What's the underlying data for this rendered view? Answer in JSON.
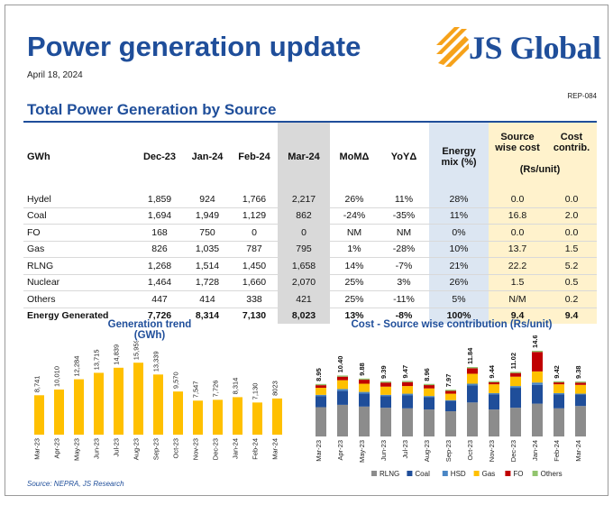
{
  "header": {
    "title": "Power generation update",
    "date": "April 18, 2024",
    "report_id": "REP-084",
    "brand": "JS Global"
  },
  "colors": {
    "brand_blue": "#1f4e9a",
    "bar_yellow": "#ffc000",
    "mar_col": "#d9d9d9",
    "mix_col": "#dce6f2",
    "cost_col": "#fff2cc"
  },
  "table": {
    "title": "Total Power Generation by Source",
    "headers": {
      "unit": "GWh",
      "dec": "Dec-23",
      "jan": "Jan-24",
      "feb": "Feb-24",
      "mar": "Mar-24",
      "mom": "MoMΔ",
      "yoy": "YoYΔ",
      "mix_l1": "Energy",
      "mix_l2": "mix (%)",
      "swc_l1": "Source",
      "swc_l2": "wise cost",
      "contrib_l1": "Cost",
      "contrib_l2": "contrib.",
      "rs_unit": "(Rs/unit)"
    },
    "rows": [
      {
        "source": "Hydel",
        "dec": "1,859",
        "jan": "924",
        "feb": "1,766",
        "mar": "2,217",
        "mom": "26%",
        "yoy": "11%",
        "mix": "28%",
        "cost": "0.0",
        "contrib": "0.0"
      },
      {
        "source": "Coal",
        "dec": "1,694",
        "jan": "1,949",
        "feb": "1,129",
        "mar": "862",
        "mom": "-24%",
        "yoy": "-35%",
        "mix": "11%",
        "cost": "16.8",
        "contrib": "2.0"
      },
      {
        "source": "FO",
        "dec": "168",
        "jan": "750",
        "feb": "0",
        "mar": "0",
        "mom": "NM",
        "yoy": "NM",
        "mix": "0%",
        "cost": "0.0",
        "contrib": "0.0"
      },
      {
        "source": "Gas",
        "dec": "826",
        "jan": "1,035",
        "feb": "787",
        "mar": "795",
        "mom": "1%",
        "yoy": "-28%",
        "mix": "10%",
        "cost": "13.7",
        "contrib": "1.5"
      },
      {
        "source": "RLNG",
        "dec": "1,268",
        "jan": "1,514",
        "feb": "1,450",
        "mar": "1,658",
        "mom": "14%",
        "yoy": "-7%",
        "mix": "21%",
        "cost": "22.2",
        "contrib": "5.2"
      },
      {
        "source": "Nuclear",
        "dec": "1,464",
        "jan": "1,728",
        "feb": "1,660",
        "mar": "2,070",
        "mom": "25%",
        "yoy": "3%",
        "mix": "26%",
        "cost": "1.5",
        "contrib": "0.5"
      },
      {
        "source": "Others",
        "dec": "447",
        "jan": "414",
        "feb": "338",
        "mar": "421",
        "mom": "25%",
        "yoy": "-11%",
        "mix": "5%",
        "cost": "N/M",
        "contrib": "0.2"
      }
    ],
    "total": {
      "source": "Energy Generated",
      "dec": "7,726",
      "jan": "8,314",
      "feb": "7,130",
      "mar": "8,023",
      "mom": "13%",
      "yoy": "-8%",
      "mix": "100%",
      "cost": "9.4",
      "contrib": "9.4"
    }
  },
  "chart_data": [
    {
      "type": "bar",
      "title_line1": "Generation trend",
      "title_line2": "(GWh)",
      "categories": [
        "Mar-23",
        "Apr-23",
        "May-23",
        "Jun-23",
        "Jul-23",
        "Aug-23",
        "Sep-23",
        "Oct-23",
        "Nov-23",
        "Dec-23",
        "Jan-24",
        "Feb-24",
        "Mar-24"
      ],
      "values": [
        8741,
        10010,
        12284,
        13715,
        14839,
        15959,
        13339,
        9570,
        7547,
        7726,
        8314,
        7130,
        8023
      ],
      "labels": [
        "8,741",
        "10,010",
        "12,284",
        "13,715",
        "14,839",
        "15,959",
        "13,339",
        "9,570",
        "7,547",
        "7,726",
        "8,314",
        "7,130",
        "8023"
      ],
      "ylim": [
        0,
        20000
      ]
    },
    {
      "type": "stacked_bar",
      "title": "Cost - Source wise contribution (Rs/unit)",
      "categories": [
        "Mar-23",
        "Apr-23",
        "May-23",
        "Jun-23",
        "Jul-23",
        "Aug-23",
        "Sep-23",
        "Oct-23",
        "Nov-23",
        "Dec-23",
        "Jan-24",
        "Feb-24",
        "Mar-24"
      ],
      "totals": [
        8.95,
        10.4,
        9.88,
        9.39,
        9.47,
        8.96,
        7.97,
        11.84,
        9.44,
        11.02,
        14.62,
        9.42,
        9.38
      ],
      "total_labels": [
        "8.95",
        "10.40",
        "9.88",
        "9.39",
        "9.47",
        "8.96",
        "7.97",
        "11.84",
        "9.44",
        "11.02",
        "14.62",
        "9.42",
        "9.38"
      ],
      "ylim": [
        0,
        16
      ],
      "series": [
        {
          "name": "RLNG",
          "color": "#8c8c8c",
          "values": [
            5.0,
            5.4,
            5.1,
            4.9,
            4.8,
            4.6,
            4.3,
            5.8,
            4.6,
            4.9,
            5.6,
            4.8,
            5.2
          ]
        },
        {
          "name": "Coal",
          "color": "#1f4e9a",
          "values": [
            1.9,
            2.4,
            2.2,
            2.0,
            2.2,
            2.1,
            1.8,
            2.9,
            2.6,
            3.4,
            3.2,
            2.4,
            2.0
          ]
        },
        {
          "name": "HSD",
          "color": "#4a86c5",
          "values": [
            0.2,
            0.3,
            0.3,
            0.2,
            0.3,
            0.2,
            0.1,
            0.3,
            0.2,
            0.3,
            0.4,
            0.2,
            0.1
          ]
        },
        {
          "name": "Gas",
          "color": "#ffc000",
          "values": [
            1.2,
            1.5,
            1.4,
            1.4,
            1.3,
            1.3,
            1.1,
            1.7,
            1.5,
            1.6,
            1.9,
            1.5,
            1.5
          ]
        },
        {
          "name": "FO",
          "color": "#c00000",
          "values": [
            0.45,
            0.6,
            0.68,
            0.69,
            0.67,
            0.56,
            0.47,
            0.94,
            0.34,
            0.62,
            3.32,
            0.32,
            0.38
          ]
        },
        {
          "name": "Others",
          "color": "#92c46e",
          "values": [
            0.2,
            0.2,
            0.2,
            0.2,
            0.2,
            0.2,
            0.2,
            0.2,
            0.2,
            0.2,
            0.2,
            0.2,
            0.2
          ]
        }
      ]
    }
  ],
  "footer": {
    "source": "Source: NEPRA, JS Research"
  }
}
